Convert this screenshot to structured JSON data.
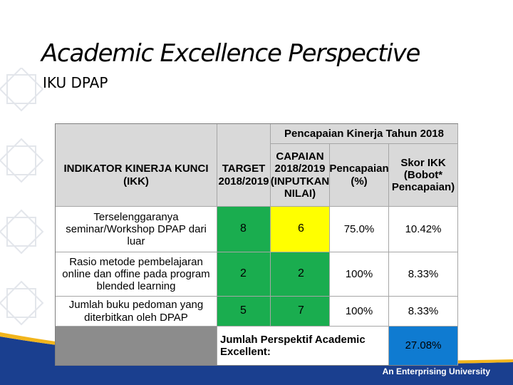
{
  "slide": {
    "title": "Academic Excellence Perspective",
    "subtitle": "IKU DPAP"
  },
  "footer": {
    "tagline": "An Enterprising University"
  },
  "table": {
    "group_header": "Pencapaian Kinerja Tahun 2018",
    "headers": {
      "indicator": "INDIKATOR KINERJA KUNCI (IKK)",
      "target": "TARGET 2018/2019",
      "capaian": "CAPAIAN 2018/2019 (INPUTKAN NILAI)",
      "pencapaian": "Pencapaian (%)",
      "skor": "Skor IKK (Bobot* Pencapaian)"
    },
    "rows": [
      {
        "indicator": "Terselenggaranya seminar/Workshop DPAP dari luar",
        "target": "8",
        "capaian": "6",
        "pencapaian": "75.0%",
        "skor": "10.42%"
      },
      {
        "indicator": "Rasio metode pembelajaran online dan offine pada program blended learning",
        "target": "2",
        "capaian": "2",
        "pencapaian": "100%",
        "skor": "8.33%"
      },
      {
        "indicator": "Jumlah buku pedoman yang diterbitkan oleh DPAP",
        "target": "5",
        "capaian": "7",
        "pencapaian": "100%",
        "skor": "8.33%"
      }
    ],
    "total": {
      "label": "Jumlah Perspektif Academic Excellent:",
      "value": "27.08%"
    }
  },
  "colors": {
    "on_target": "#1aad4f",
    "below_target": "#ffff00",
    "total_highlight": "#0f7bd1",
    "footer_navy": "#1a3f8f",
    "footer_gold": "#f2b51c"
  }
}
